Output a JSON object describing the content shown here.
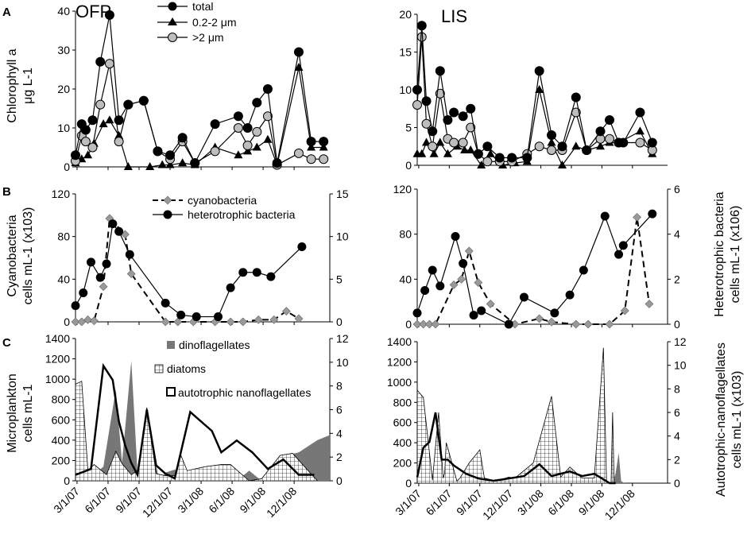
{
  "figure": {
    "panel_labels": [
      "A",
      "B",
      "C"
    ],
    "panel_titles": [
      "OFP",
      "LIS"
    ],
    "x_ticks": [
      "3/1/07",
      "6/1/07",
      "9/1/07",
      "12/1/07",
      "3/1/08",
      "6/1/08",
      "9/1/08",
      "12/1/08"
    ],
    "labels": {
      "chl_left_1": "Chlorophyll a",
      "chl_left_2": "μg L-1",
      "cyano_left_1": "Cyanobacteria",
      "cyano_left_2": "cells mL-1 (x103)",
      "hetero_right_1": "Heterotrophic bacteria",
      "hetero_right_2": "cells mL-1 (x106)",
      "micro_left_1": "Microplankton",
      "micro_left_2": "cells mL-1",
      "nano_right_1": "Autotrophic-nanoflagellates",
      "nano_right_2": "cells mL-1 (x103)"
    },
    "legend_A": [
      "total",
      "0.2-2 μm",
      ">2 μm"
    ],
    "legend_B": [
      "cyanobacteria",
      "heterotrophic bacteria"
    ],
    "legend_C": [
      "dinoflagellates",
      "diatoms",
      "autotrophic nanoflagellates"
    ]
  },
  "chart_data": [
    {
      "panel": "A",
      "site": "OFP",
      "type": "line",
      "ylabel": "Chlorophyll a μg L-1",
      "ylim": [
        0,
        40
      ],
      "yticks": [
        0,
        10,
        20,
        30,
        40
      ],
      "series": [
        {
          "name": "total",
          "x": [
            0.0,
            0.2,
            0.33,
            0.55,
            0.8,
            1.1,
            1.4,
            1.7,
            2.2,
            2.65,
            3.05,
            3.45,
            3.85,
            4.5,
            5.25,
            5.55,
            5.85,
            6.2,
            6.5,
            7.2,
            7.6,
            8.0
          ],
          "y": [
            3,
            11,
            9.5,
            12,
            27,
            39,
            12,
            16,
            17,
            4,
            3,
            7.5,
            1,
            11,
            13,
            10,
            16.5,
            20,
            1,
            29.5,
            6.5,
            6.5
          ]
        },
        {
          "name": "0.2-2 μm",
          "x": [
            0.0,
            0.2,
            0.4,
            0.6,
            0.9,
            1.1,
            1.4,
            1.7,
            2.4,
            2.8,
            3.05,
            3.45,
            3.85,
            4.5,
            5.25,
            5.55,
            5.85,
            6.2,
            6.5,
            7.2,
            7.6,
            8.0
          ],
          "y": [
            1,
            2,
            3,
            6,
            11,
            12,
            8,
            0,
            0,
            0.5,
            0.5,
            1,
            0.5,
            5,
            3,
            4,
            5,
            7,
            0.5,
            25.5,
            5,
            5
          ]
        },
        {
          "name": ">2 μm",
          "x": [
            0.0,
            0.2,
            0.33,
            0.55,
            0.8,
            1.1,
            1.4,
            1.7,
            2.2,
            2.65,
            3.05,
            3.45,
            3.85,
            4.5,
            5.25,
            5.55,
            5.85,
            6.2,
            6.5,
            7.2,
            7.6,
            8.0
          ],
          "y": [
            1.5,
            8,
            6.5,
            5,
            16,
            26.5,
            6.5,
            16,
            17,
            4,
            2,
            6.5,
            1,
            4,
            10,
            5.5,
            9,
            13,
            0.5,
            3.5,
            2,
            2
          ]
        }
      ]
    },
    {
      "panel": "A",
      "site": "LIS",
      "type": "line",
      "ylabel": "Chlorophyll a μg L-1",
      "ylim": [
        0,
        20
      ],
      "yticks": [
        0,
        5,
        10,
        15,
        20
      ],
      "series": [
        {
          "name": "total",
          "x": [
            0.0,
            0.15,
            0.3,
            0.5,
            0.75,
            1.0,
            1.2,
            1.5,
            1.75,
            2.0,
            2.3,
            2.7,
            3.1,
            3.6,
            4.0,
            4.4,
            4.75,
            5.2,
            5.55,
            6.0,
            6.3,
            6.6,
            6.75,
            7.3,
            7.7
          ],
          "y": [
            10,
            18.5,
            8.5,
            4.5,
            12.5,
            6,
            7,
            6.5,
            7.5,
            1.5,
            2.5,
            1,
            1,
            1,
            12.5,
            4,
            2.5,
            9,
            2,
            4.5,
            6,
            3,
            3,
            7,
            3
          ]
        },
        {
          "name": "0.2-2 μm",
          "x": [
            0.0,
            0.15,
            0.3,
            0.55,
            0.75,
            1.0,
            1.3,
            1.55,
            1.75,
            2.1,
            2.4,
            2.8,
            3.2,
            3.6,
            4.0,
            4.4,
            4.75,
            5.2,
            5.55,
            6.0,
            6.3,
            6.6,
            7.3,
            7.7
          ],
          "y": [
            1.5,
            1.5,
            3,
            1.5,
            3,
            1.5,
            2.5,
            2,
            2,
            0,
            1.5,
            0,
            0.3,
            0.5,
            10,
            3,
            0,
            2.5,
            2,
            2.5,
            3,
            3,
            4.5,
            1.5
          ]
        },
        {
          "name": ">2 μm",
          "x": [
            0.0,
            0.15,
            0.3,
            0.5,
            0.75,
            1.0,
            1.2,
            1.5,
            1.75,
            2.0,
            2.3,
            2.7,
            3.1,
            3.6,
            4.0,
            4.4,
            4.75,
            5.2,
            5.55,
            6.0,
            6.3,
            6.6,
            7.3,
            7.7
          ],
          "y": [
            8,
            17,
            5.5,
            2.5,
            9.5,
            3.5,
            3,
            3,
            5,
            1.5,
            0.5,
            0.5,
            0.5,
            1.5,
            2.5,
            2,
            2,
            7,
            2,
            3.5,
            3.5,
            3,
            3,
            2
          ]
        }
      ]
    },
    {
      "panel": "B",
      "site": "OFP",
      "type": "line",
      "ylabel_left": "Cyanobacteria cells mL-1 (x103)",
      "ylim_left": [
        0,
        120
      ],
      "yticks_left": [
        0,
        40,
        80,
        120
      ],
      "ylabel_right": "Heterotrophic bacteria cells mL-1 (x106)",
      "ylim_right": [
        0,
        15
      ],
      "yticks_right": [
        0,
        5,
        10,
        15
      ],
      "series": [
        {
          "name": "cyanobacteria",
          "axis": "left",
          "x": [
            0.0,
            0.2,
            0.4,
            0.6,
            0.9,
            1.1,
            1.6,
            1.8,
            2.9,
            3.3,
            3.8,
            4.5,
            5.0,
            5.4,
            5.9,
            6.4,
            6.8,
            7.2
          ],
          "y": [
            0,
            0,
            2,
            1,
            33,
            97,
            82,
            45,
            0,
            0,
            0,
            0,
            0,
            0,
            2,
            2,
            10,
            3
          ]
        },
        {
          "name": "heterotrophic bacteria",
          "axis": "right",
          "x": [
            0.0,
            0.25,
            0.5,
            0.8,
            1.0,
            1.2,
            1.4,
            1.75,
            2.9,
            3.4,
            3.9,
            4.6,
            5.0,
            5.4,
            5.85,
            6.3,
            7.3
          ],
          "y": [
            1.9,
            3.4,
            7,
            5.2,
            6.8,
            11.5,
            10.6,
            7.9,
            2.2,
            0.8,
            0.6,
            0.6,
            4,
            5.8,
            5.8,
            5.3,
            8.8
          ]
        }
      ]
    },
    {
      "panel": "B",
      "site": "LIS",
      "type": "line",
      "ylabel_left": "Cyanobacteria cells mL-1 (x103)",
      "ylim_left": [
        0,
        120
      ],
      "yticks_left": [
        0,
        40,
        80,
        120
      ],
      "ylabel_right": "Heterotrophic bacteria cells mL-1 (x106)",
      "ylim_right": [
        0,
        6
      ],
      "yticks_right": [
        0,
        2,
        4,
        6
      ],
      "series": [
        {
          "name": "cyanobacteria",
          "axis": "left",
          "x": [
            0.0,
            0.2,
            0.4,
            0.6,
            1.2,
            1.45,
            1.7,
            2.0,
            2.4,
            3.2,
            4.0,
            4.4,
            5.2,
            5.6,
            6.3,
            6.8,
            7.2,
            7.6
          ],
          "y": [
            0,
            0,
            0,
            0,
            35,
            40,
            65,
            37,
            18,
            0,
            5,
            2,
            0,
            0,
            0,
            12,
            95,
            18
          ]
        },
        {
          "name": "heterotrophic bacteria",
          "axis": "right",
          "x": [
            0.0,
            0.25,
            0.5,
            0.75,
            1.25,
            1.5,
            1.85,
            2.1,
            3.0,
            3.5,
            4.5,
            5.0,
            5.45,
            6.15,
            6.6,
            6.75,
            7.7
          ],
          "y": [
            0.5,
            1.5,
            2.4,
            1.7,
            3.9,
            2.7,
            0.4,
            0.6,
            0,
            1.2,
            0.5,
            1.3,
            2.4,
            4.8,
            3.1,
            3.5,
            4.9
          ]
        }
      ]
    },
    {
      "panel": "C",
      "site": "OFP",
      "type": "area",
      "ylabel_left": "Microplankton cells mL-1",
      "ylim_left": [
        0,
        1400
      ],
      "yticks_left": [
        0,
        200,
        400,
        600,
        800,
        1000,
        1200,
        1400
      ],
      "ylabel_right": "Autotrophic-nanoflagellates cells mL-1 (x103)",
      "ylim_right": [
        0,
        12
      ],
      "yticks_right": [
        0,
        2,
        4,
        6,
        8,
        10,
        12
      ],
      "series": [
        {
          "name": "dinoflagellates",
          "axis": "left",
          "x": [
            0.0,
            0.4,
            0.6,
            0.9,
            1.3,
            1.5,
            1.8,
            2.0,
            2.3,
            2.7,
            2.9,
            3.2,
            3.7,
            4.3,
            4.8,
            5.2,
            5.6,
            6.0,
            6.5,
            6.8,
            7.2,
            7.8,
            8.2
          ],
          "y": [
            0,
            60,
            60,
            140,
            900,
            180,
            1180,
            80,
            650,
            0,
            80,
            110,
            30,
            20,
            0,
            0,
            100,
            0,
            200,
            250,
            280,
            400,
            450
          ]
        },
        {
          "name": "diatoms",
          "axis": "left",
          "x": [
            0.0,
            0.2,
            0.4,
            0.6,
            1.0,
            1.3,
            1.5,
            1.8,
            2.0,
            2.3,
            2.6,
            2.9,
            3.2,
            3.4,
            3.6,
            4.2,
            4.7,
            5.0,
            5.6,
            6.0,
            6.6,
            7.0,
            7.5,
            7.8
          ],
          "y": [
            950,
            980,
            100,
            160,
            60,
            290,
            170,
            60,
            100,
            720,
            70,
            50,
            50,
            250,
            100,
            140,
            160,
            160,
            0,
            20,
            250,
            270,
            100,
            0
          ]
        },
        {
          "name": "autotrophic nanoflagellates",
          "axis": "right",
          "x": [
            0.0,
            0.5,
            0.9,
            1.2,
            1.4,
            1.6,
            1.8,
            2.0,
            2.3,
            2.6,
            2.9,
            3.2,
            3.7,
            4.4,
            4.7,
            5.2,
            5.7,
            6.2,
            6.7,
            7.2,
            7.7
          ],
          "y": [
            0.5,
            1.0,
            9.7,
            8.5,
            5.0,
            3.0,
            1.5,
            0.5,
            6.0,
            1.3,
            0.6,
            0.2,
            5.8,
            4.2,
            2.4,
            3.4,
            2.4,
            1.0,
            1.8,
            0.5,
            0.5
          ]
        }
      ]
    },
    {
      "panel": "C",
      "site": "LIS",
      "type": "area",
      "ylabel_left": "Microplankton cells mL-1",
      "ylim_left": [
        0,
        1400
      ],
      "yticks_left": [
        0,
        200,
        400,
        600,
        800,
        1000,
        1200,
        1400
      ],
      "ylabel_right": "Autotrophic-nanoflagellates cells mL-1 (x103)",
      "ylim_right": [
        0,
        12
      ],
      "yticks_right": [
        0,
        2,
        4,
        6,
        8,
        10,
        12
      ],
      "series": [
        {
          "name": "dinoflagellates",
          "axis": "left",
          "x": [
            0.0,
            0.6,
            1.1,
            1.3,
            1.5,
            1.8,
            2.1,
            2.4,
            3.0,
            3.5,
            4.0,
            4.4,
            5.0,
            5.6,
            6.2,
            6.4,
            6.5,
            6.6,
            6.68,
            6.8
          ],
          "y": [
            0,
            0,
            0,
            0,
            0,
            0,
            0,
            0,
            0,
            0,
            0,
            0,
            0,
            0,
            0,
            0,
            100,
            300,
            20,
            0
          ]
        },
        {
          "name": "diatoms",
          "axis": "left",
          "x": [
            0.0,
            0.2,
            0.5,
            0.7,
            0.85,
            0.9,
            0.95,
            1.0,
            1.2,
            1.3,
            1.4,
            1.7,
            2.05,
            2.2,
            2.6,
            3.0,
            3.2,
            3.8,
            4.4,
            4.7,
            5.0,
            5.4,
            5.8,
            6.1,
            6.2,
            6.35,
            6.4,
            6.45
          ],
          "y": [
            920,
            850,
            30,
            700,
            50,
            100,
            400,
            350,
            130,
            20,
            50,
            200,
            330,
            50,
            20,
            60,
            50,
            200,
            860,
            60,
            160,
            50,
            50,
            1340,
            20,
            0,
            700,
            0
          ]
        },
        {
          "name": "autotrophic nanoflagellates",
          "axis": "right",
          "x": [
            0.0,
            0.2,
            0.4,
            0.6,
            0.8,
            1.0,
            1.2,
            1.6,
            2.0,
            2.5,
            3.0,
            3.5,
            4.0,
            4.4,
            5.0,
            5.4,
            5.8,
            6.3,
            6.5
          ],
          "y": [
            0.5,
            3.0,
            3.5,
            6.0,
            2.0,
            2.0,
            1.5,
            0.8,
            0.4,
            0.2,
            0.4,
            0.6,
            1.6,
            0.6,
            1.0,
            0.6,
            0.8,
            0,
            0
          ]
        }
      ]
    }
  ]
}
